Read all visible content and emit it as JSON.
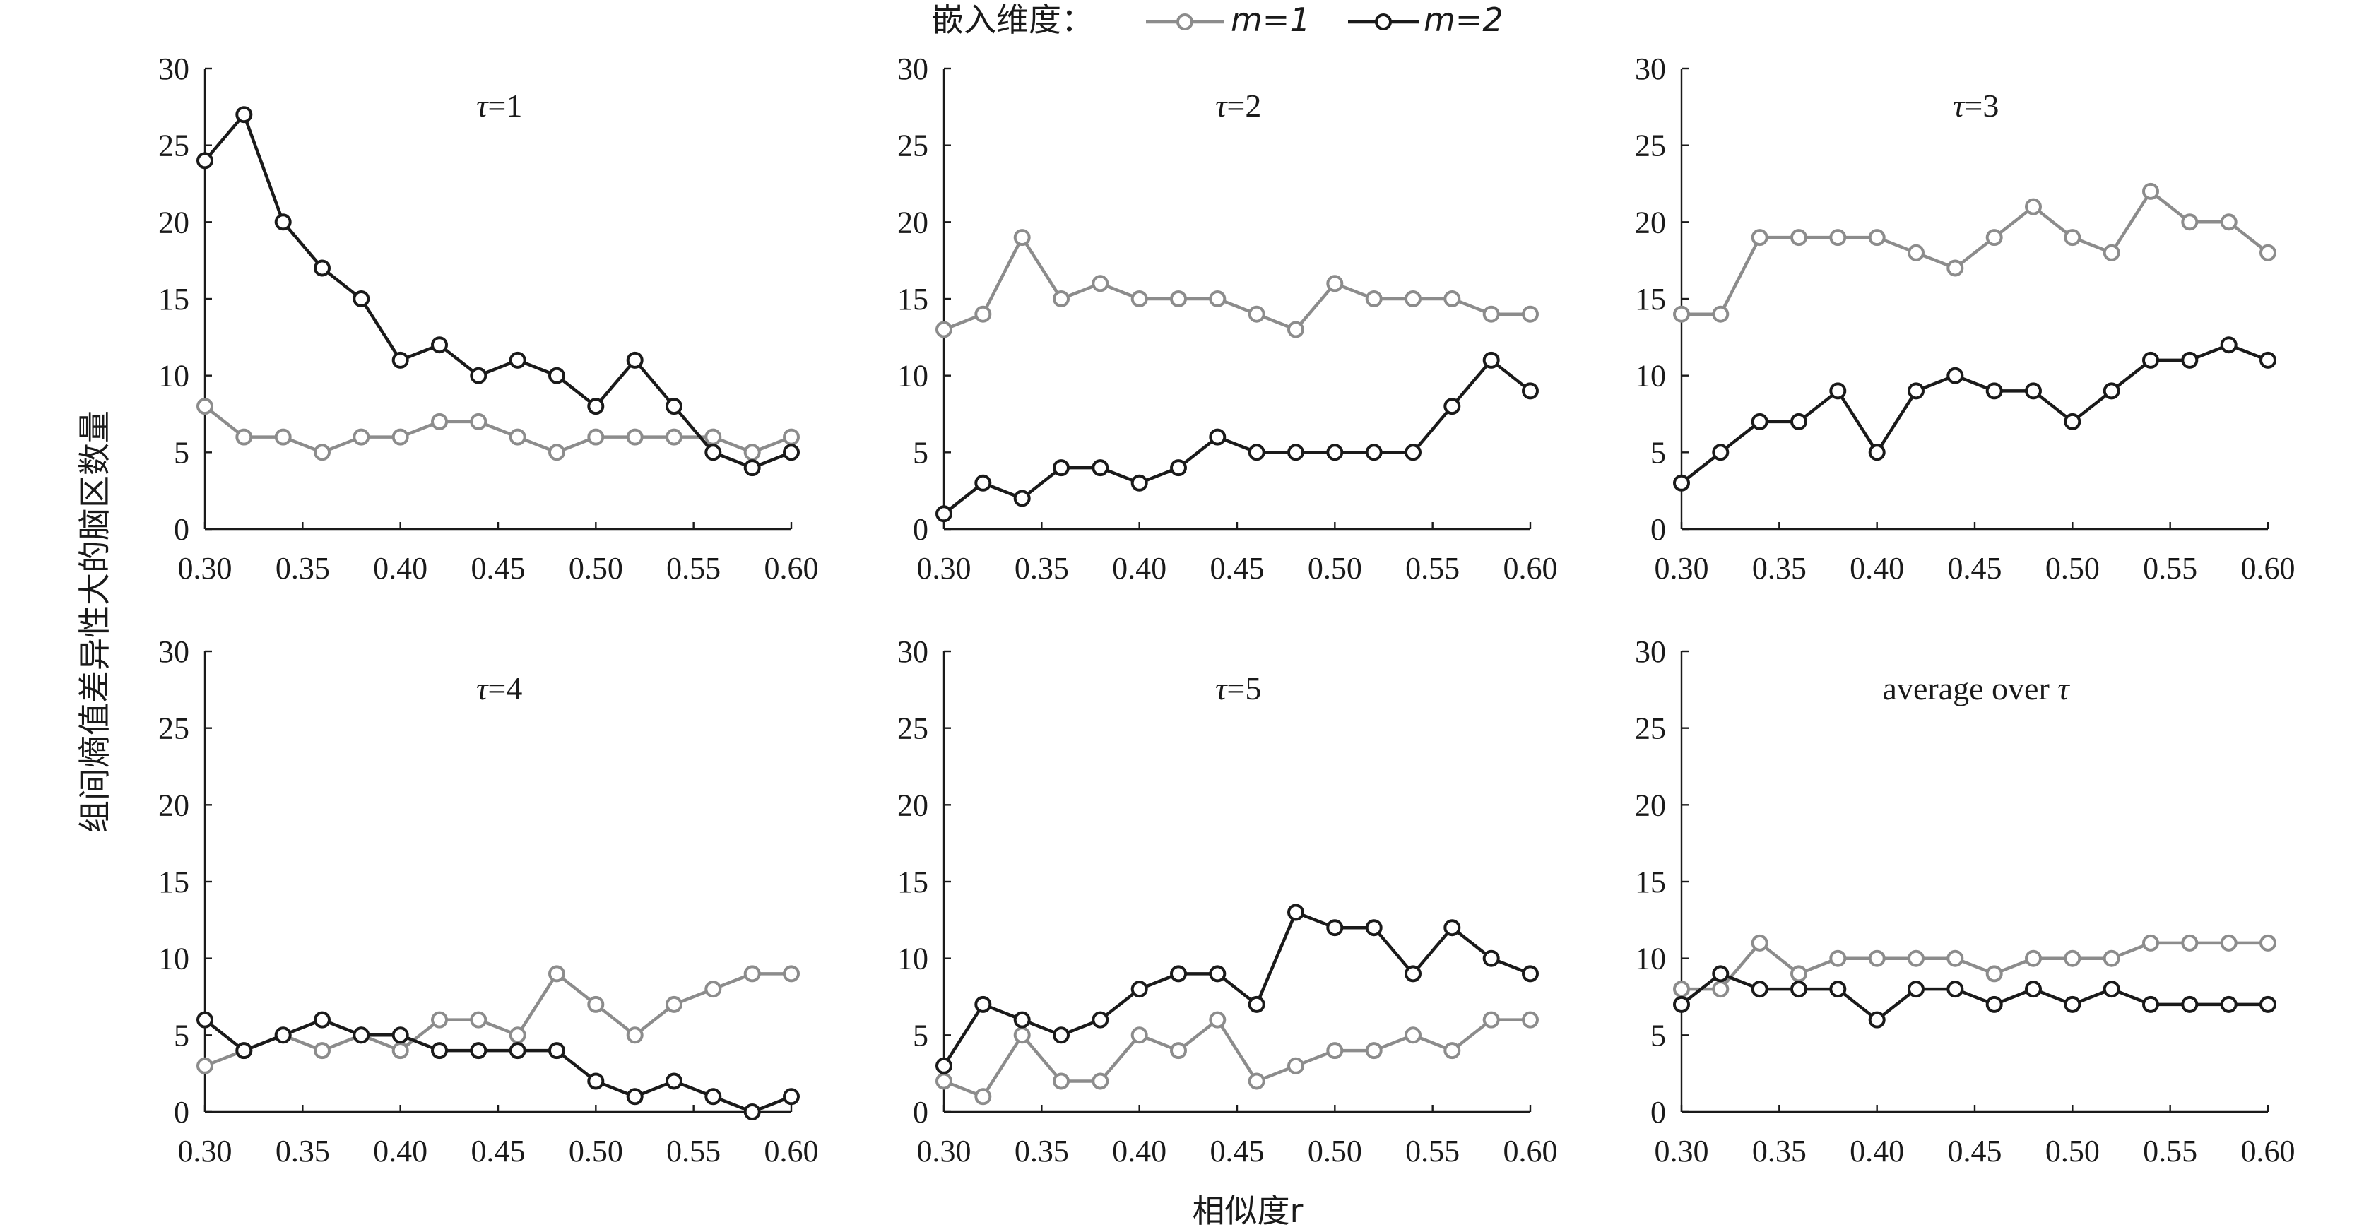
{
  "legend": {
    "title": "嵌入维度：",
    "entries": [
      {
        "label": "m=1",
        "color": "#8c8c8c"
      },
      {
        "label": "m=2",
        "color": "#1a1a1a"
      }
    ]
  },
  "ylabel": "组间熵值差异性大的脑区数量",
  "xlabel": "相似度r",
  "chart_data": [
    {
      "type": "line",
      "title": "τ=1",
      "x": [
        0.3,
        0.32,
        0.34,
        0.36,
        0.38,
        0.4,
        0.42,
        0.44,
        0.46,
        0.48,
        0.5,
        0.52,
        0.54,
        0.56,
        0.58,
        0.6
      ],
      "xticks": [
        "0.30",
        "0.35",
        "0.40",
        "0.45",
        "0.50",
        "0.55",
        "0.60"
      ],
      "yticks": [
        "0",
        "5",
        "10",
        "15",
        "20",
        "25",
        "30"
      ],
      "xlim": [
        0.3,
        0.6
      ],
      "ylim": [
        0,
        30
      ],
      "series": [
        {
          "name": "m=1",
          "values": [
            8,
            6,
            6,
            5,
            6,
            6,
            7,
            7,
            6,
            5,
            6,
            6,
            6,
            6,
            5,
            6
          ]
        },
        {
          "name": "m=2",
          "values": [
            24,
            27,
            20,
            17,
            15,
            11,
            12,
            10,
            11,
            10,
            8,
            11,
            8,
            5,
            4,
            5
          ]
        }
      ]
    },
    {
      "type": "line",
      "title": "τ=2",
      "x": [
        0.3,
        0.32,
        0.34,
        0.36,
        0.38,
        0.4,
        0.42,
        0.44,
        0.46,
        0.48,
        0.5,
        0.52,
        0.54,
        0.56,
        0.58,
        0.6
      ],
      "xticks": [
        "0.30",
        "0.35",
        "0.40",
        "0.45",
        "0.50",
        "0.55",
        "0.60"
      ],
      "yticks": [
        "0",
        "5",
        "10",
        "15",
        "20",
        "25",
        "30"
      ],
      "xlim": [
        0.3,
        0.6
      ],
      "ylim": [
        0,
        30
      ],
      "series": [
        {
          "name": "m=1",
          "values": [
            13,
            14,
            19,
            15,
            16,
            15,
            15,
            15,
            14,
            13,
            16,
            15,
            15,
            15,
            14,
            14
          ]
        },
        {
          "name": "m=2",
          "values": [
            1,
            3,
            2,
            4,
            4,
            3,
            4,
            6,
            5,
            5,
            5,
            5,
            5,
            8,
            11,
            9
          ]
        }
      ]
    },
    {
      "type": "line",
      "title": "τ=3",
      "x": [
        0.3,
        0.32,
        0.34,
        0.36,
        0.38,
        0.4,
        0.42,
        0.44,
        0.46,
        0.48,
        0.5,
        0.52,
        0.54,
        0.56,
        0.58,
        0.6
      ],
      "xticks": [
        "0.30",
        "0.35",
        "0.40",
        "0.45",
        "0.50",
        "0.55",
        "0.60"
      ],
      "yticks": [
        "0",
        "5",
        "10",
        "15",
        "20",
        "25",
        "30"
      ],
      "xlim": [
        0.3,
        0.6
      ],
      "ylim": [
        0,
        30
      ],
      "series": [
        {
          "name": "m=1",
          "values": [
            14,
            14,
            19,
            19,
            19,
            19,
            18,
            17,
            19,
            21,
            19,
            18,
            22,
            20,
            20,
            18
          ]
        },
        {
          "name": "m=2",
          "values": [
            3,
            5,
            7,
            7,
            9,
            5,
            9,
            10,
            9,
            9,
            7,
            9,
            11,
            11,
            12,
            11
          ]
        }
      ]
    },
    {
      "type": "line",
      "title": "τ=4",
      "x": [
        0.3,
        0.32,
        0.34,
        0.36,
        0.38,
        0.4,
        0.42,
        0.44,
        0.46,
        0.48,
        0.5,
        0.52,
        0.54,
        0.56,
        0.58,
        0.6
      ],
      "xticks": [
        "0.30",
        "0.35",
        "0.40",
        "0.45",
        "0.50",
        "0.55",
        "0.60"
      ],
      "yticks": [
        "0",
        "5",
        "10",
        "15",
        "20",
        "25",
        "30"
      ],
      "xlim": [
        0.3,
        0.6
      ],
      "ylim": [
        0,
        30
      ],
      "series": [
        {
          "name": "m=1",
          "values": [
            3,
            4,
            5,
            4,
            5,
            4,
            6,
            6,
            5,
            9,
            7,
            5,
            7,
            8,
            9,
            9
          ]
        },
        {
          "name": "m=2",
          "values": [
            6,
            4,
            5,
            6,
            5,
            5,
            4,
            4,
            4,
            4,
            2,
            1,
            2,
            1,
            0,
            1
          ]
        }
      ]
    },
    {
      "type": "line",
      "title": "τ=5",
      "x": [
        0.3,
        0.32,
        0.34,
        0.36,
        0.38,
        0.4,
        0.42,
        0.44,
        0.46,
        0.48,
        0.5,
        0.52,
        0.54,
        0.56,
        0.58,
        0.6
      ],
      "xticks": [
        "0.30",
        "0.35",
        "0.40",
        "0.45",
        "0.50",
        "0.55",
        "0.60"
      ],
      "yticks": [
        "0",
        "5",
        "10",
        "15",
        "20",
        "25",
        "30"
      ],
      "xlim": [
        0.3,
        0.6
      ],
      "ylim": [
        0,
        30
      ],
      "series": [
        {
          "name": "m=1",
          "values": [
            2,
            1,
            5,
            2,
            2,
            5,
            4,
            6,
            2,
            3,
            4,
            4,
            5,
            4,
            6,
            6
          ]
        },
        {
          "name": "m=2",
          "values": [
            3,
            7,
            6,
            5,
            6,
            8,
            9,
            9,
            7,
            13,
            12,
            12,
            9,
            12,
            10,
            9
          ]
        }
      ]
    },
    {
      "type": "line",
      "title": "average over τ",
      "x": [
        0.3,
        0.32,
        0.34,
        0.36,
        0.38,
        0.4,
        0.42,
        0.44,
        0.46,
        0.48,
        0.5,
        0.52,
        0.54,
        0.56,
        0.58,
        0.6
      ],
      "xticks": [
        "0.30",
        "0.35",
        "0.40",
        "0.45",
        "0.50",
        "0.55",
        "0.60"
      ],
      "yticks": [
        "0",
        "5",
        "10",
        "15",
        "20",
        "25",
        "30"
      ],
      "xlim": [
        0.3,
        0.6
      ],
      "ylim": [
        0,
        30
      ],
      "series": [
        {
          "name": "m=1",
          "values": [
            8,
            8,
            11,
            9,
            10,
            10,
            10,
            10,
            9,
            10,
            10,
            10,
            11,
            11,
            11,
            11
          ]
        },
        {
          "name": "m=2",
          "values": [
            7,
            9,
            8,
            8,
            8,
            6,
            8,
            8,
            7,
            8,
            7,
            8,
            7,
            7,
            7,
            7
          ]
        }
      ]
    }
  ]
}
